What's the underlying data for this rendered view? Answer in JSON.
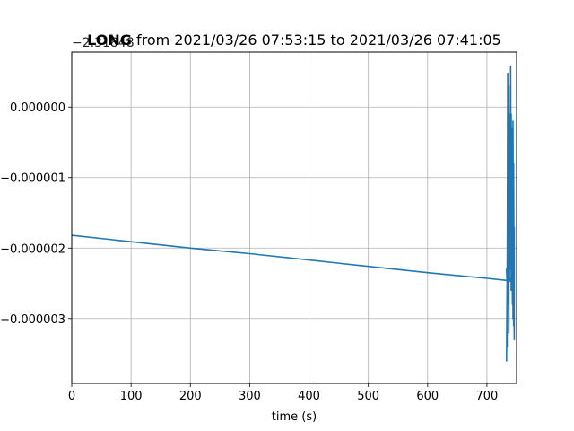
{
  "chart_data": {
    "type": "line",
    "title_bold": "LONG",
    "title_rest": " from 2021/03/26 07:53:15 to 2021/03/26 07:41:05",
    "offset_text": "−2.31848",
    "xlabel": "time (s)",
    "ylabel": "",
    "xlim": [
      0,
      750
    ],
    "ylim": [
      -3.92e-06,
      7.8e-07
    ],
    "grid": true,
    "x_ticks": [
      0,
      100,
      200,
      300,
      400,
      500,
      600,
      700
    ],
    "x_tick_labels": [
      "0",
      "100",
      "200",
      "300",
      "400",
      "500",
      "600",
      "700"
    ],
    "y_ticks": [
      0.0,
      -1e-06,
      -2e-06,
      -3e-06
    ],
    "y_tick_labels": [
      "0.000000",
      "−0.000001",
      "−0.000002",
      "−0.000003"
    ],
    "series": [
      {
        "color": "#1f77b4",
        "x": [
          0,
          100,
          200,
          300,
          400,
          500,
          600,
          700,
          735,
          740,
          733,
          734,
          733,
          735,
          734,
          735,
          736,
          736,
          737,
          737,
          738,
          738,
          739,
          739,
          740,
          740,
          741,
          741,
          742,
          742,
          743,
          743,
          744,
          744,
          745,
          745,
          746,
          746
        ],
        "y": [
          -1.82e-06,
          -1.91e-06,
          -2e-06,
          -2.08e-06,
          -2.17e-06,
          -2.26e-06,
          -2.35e-06,
          -2.43e-06,
          -2.46e-06,
          -2.47e-06,
          -2.3e-06,
          -2.5e-06,
          -3.6e-06,
          -1.2e-06,
          -3.4e-06,
          4.8e-07,
          -2.8e-06,
          -3e-07,
          -3.2e-06,
          3e-07,
          -2.4e-06,
          -1e-07,
          -2.3e-06,
          -8e-07,
          -2.3e-06,
          5.8e-07,
          -2.6e-06,
          -1e-07,
          -2.2e-06,
          -1.4e-06,
          -2.8e-06,
          -3e-07,
          -3e-06,
          -2e-07,
          -3.1e-06,
          -8e-07,
          -3.3e-06,
          -1.7e-06
        ]
      }
    ]
  }
}
